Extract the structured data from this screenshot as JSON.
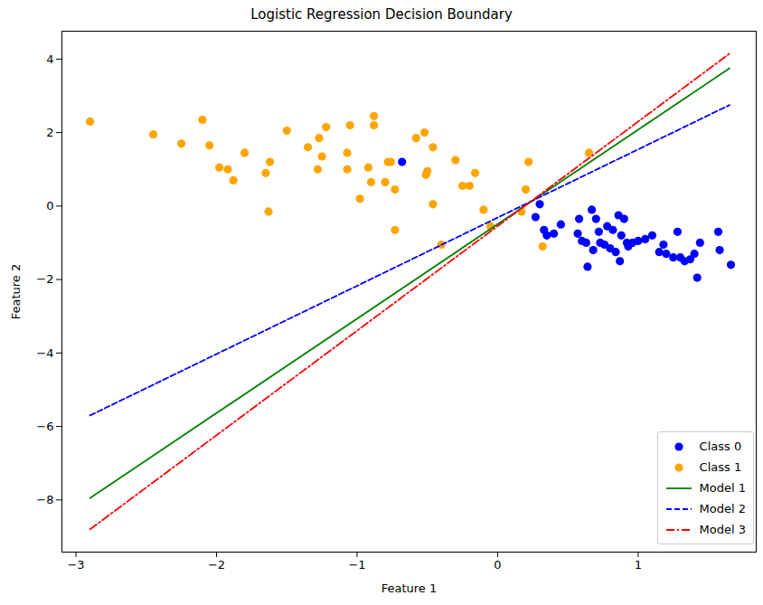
{
  "chart_data": {
    "type": "scatter",
    "title": "Logistic Regression Decision Boundary",
    "x_label": "Feature 1",
    "y_label": "Feature 2",
    "xlim": [
      -3.1,
      1.84
    ],
    "ylim": [
      -9.42,
      4.76
    ],
    "xticks": [
      -3,
      -2,
      -1,
      0,
      1
    ],
    "yticks": [
      -8,
      -6,
      -4,
      -2,
      0,
      2,
      4
    ],
    "grid": false,
    "legend": "lower right",
    "series": [
      {
        "name": "Class 0",
        "type": "scatter",
        "marker": "circle",
        "color": "#0000ff",
        "x": [
          -0.68,
          0.3,
          0.27,
          0.33,
          0.35,
          0.4,
          0.45,
          0.57,
          0.58,
          0.6,
          0.63,
          0.64,
          0.67,
          0.68,
          0.7,
          0.72,
          0.73,
          0.76,
          0.78,
          0.8,
          0.82,
          0.84,
          0.86,
          0.87,
          0.88,
          0.9,
          0.92,
          0.93,
          0.96,
          1.0,
          1.05,
          1.1,
          1.15,
          1.18,
          1.2,
          1.25,
          1.28,
          1.3,
          1.33,
          1.37,
          1.4,
          1.42,
          1.44,
          1.57,
          1.58,
          1.66
        ],
        "values": [
          1.2,
          0.05,
          -0.3,
          -0.65,
          -0.8,
          -0.75,
          -0.5,
          -0.75,
          -0.35,
          -0.95,
          -1.0,
          -1.65,
          -0.1,
          -1.2,
          -0.35,
          -0.7,
          -1.0,
          -1.05,
          -0.55,
          -1.15,
          -0.65,
          -1.25,
          -0.25,
          -1.5,
          -0.8,
          -0.35,
          -1.0,
          -1.1,
          -1.0,
          -0.95,
          -0.9,
          -0.8,
          -1.25,
          -1.05,
          -1.3,
          -1.4,
          -0.7,
          -1.4,
          -1.5,
          -1.45,
          -1.3,
          -1.95,
          -1.0,
          -0.7,
          -1.2,
          -1.6
        ]
      },
      {
        "name": "Class 1",
        "type": "scatter",
        "marker": "circle",
        "color": "#ffa500",
        "x": [
          -2.9,
          -2.45,
          -2.25,
          -2.1,
          -2.05,
          -1.98,
          -1.92,
          -1.88,
          -1.8,
          -1.65,
          -1.63,
          -1.62,
          -1.5,
          -1.35,
          -1.28,
          -1.27,
          -1.25,
          -1.22,
          -1.07,
          -1.07,
          -1.05,
          -0.98,
          -0.92,
          -0.9,
          -0.88,
          -0.88,
          -0.8,
          -0.78,
          -0.76,
          -0.73,
          -0.73,
          -0.58,
          -0.52,
          -0.51,
          -0.5,
          -0.46,
          -0.46,
          -0.4,
          -0.3,
          -0.25,
          -0.2,
          -0.16,
          -0.1,
          -0.05,
          0.17,
          0.2,
          0.22,
          0.32,
          0.65
        ],
        "values": [
          2.3,
          1.95,
          1.7,
          2.35,
          1.65,
          1.05,
          1.0,
          0.7,
          1.45,
          0.9,
          -0.15,
          1.2,
          2.05,
          1.6,
          1.0,
          1.85,
          1.35,
          2.15,
          1.45,
          1.0,
          2.2,
          0.2,
          1.05,
          0.65,
          2.2,
          2.45,
          0.65,
          1.2,
          1.2,
          0.45,
          -0.65,
          1.85,
          2.0,
          0.85,
          0.95,
          1.6,
          0.05,
          -1.05,
          1.25,
          0.55,
          0.55,
          0.9,
          -0.1,
          -0.55,
          -0.15,
          0.45,
          1.2,
          -1.1,
          1.45
        ]
      },
      {
        "name": "Model 1",
        "type": "line",
        "line_style": "solid",
        "color": "#008000",
        "x": [
          -2.9,
          1.65
        ],
        "values": [
          -7.95,
          3.75
        ]
      },
      {
        "name": "Model 2",
        "type": "line",
        "line_style": "dashed",
        "color": "#0000ff",
        "x": [
          -2.9,
          1.65
        ],
        "values": [
          -5.7,
          2.75
        ]
      },
      {
        "name": "Model 3",
        "type": "line",
        "line_style": "dashdot",
        "color": "#ff0000",
        "x": [
          -2.9,
          1.65
        ],
        "values": [
          -8.8,
          4.15
        ]
      }
    ]
  }
}
